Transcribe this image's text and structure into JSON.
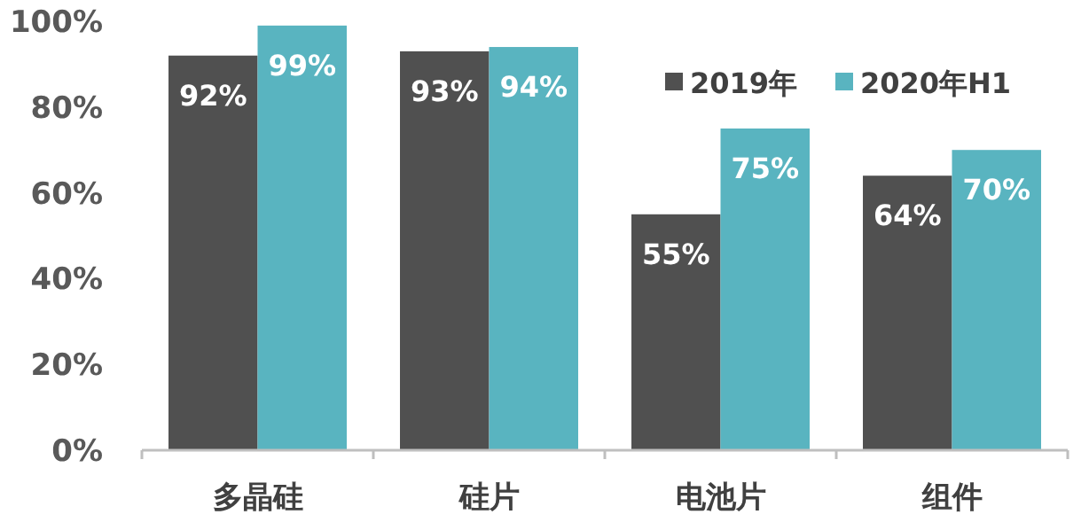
{
  "chart_data": {
    "type": "bar",
    "categories": [
      "多晶硅",
      "硅片",
      "电池片",
      "组件"
    ],
    "series": [
      {
        "name": "2019年",
        "color": "#505050",
        "values": [
          92,
          93,
          55,
          64
        ]
      },
      {
        "name": "2020年H1",
        "color": "#59b4c0",
        "values": [
          99,
          94,
          75,
          70
        ]
      }
    ],
    "ylim": [
      0,
      100
    ],
    "yticks": [
      {
        "value": 0,
        "label": "0%"
      },
      {
        "value": 20,
        "label": "20%"
      },
      {
        "value": 40,
        "label": "40%"
      },
      {
        "value": 60,
        "label": "60%"
      },
      {
        "value": 80,
        "label": "80%"
      },
      {
        "value": 100,
        "label": "100%"
      }
    ],
    "value_labels": [
      [
        "92%",
        "93%",
        "55%",
        "64%"
      ],
      [
        "99%",
        "94%",
        "75%",
        "70%"
      ]
    ],
    "grid": false,
    "legend": "top right"
  }
}
